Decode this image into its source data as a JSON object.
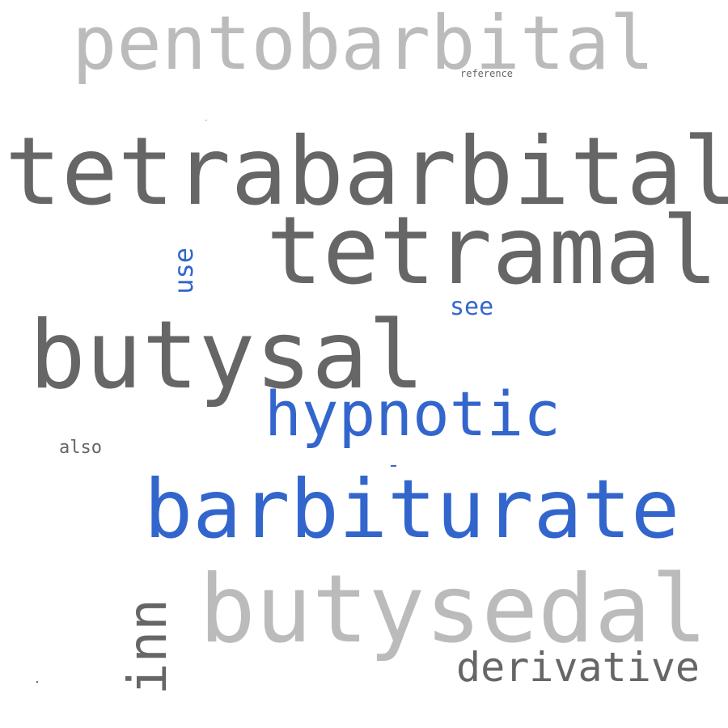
{
  "palette": {
    "light_gray": "#bbbbbb",
    "dark_gray": "#666666",
    "blue": "#3366cc"
  },
  "words": {
    "pentobarbital": {
      "text": "pentobarbital",
      "color": "#bbbbbb",
      "orientation": "horizontal"
    },
    "reference": {
      "text": "reference",
      "color": "#666666",
      "orientation": "horizontal"
    },
    "tetrabarbital": {
      "text": "tetrabarbital",
      "color": "#666666",
      "orientation": "horizontal"
    },
    "tetramal": {
      "text": "tetramal",
      "color": "#666666",
      "orientation": "horizontal"
    },
    "use": {
      "text": "use",
      "color": "#3366cc",
      "orientation": "vertical"
    },
    "see": {
      "text": "see",
      "color": "#3366cc",
      "orientation": "horizontal"
    },
    "butysal": {
      "text": "butysal",
      "color": "#666666",
      "orientation": "horizontal"
    },
    "hypnotic": {
      "text": "hypnotic",
      "color": "#3366cc",
      "orientation": "horizontal"
    },
    "also": {
      "text": "also",
      "color": "#666666",
      "orientation": "horizontal"
    },
    "barbiturate": {
      "text": "barbiturate",
      "color": "#3366cc",
      "orientation": "horizontal"
    },
    "butysedal": {
      "text": "butysedal",
      "color": "#bbbbbb",
      "orientation": "horizontal"
    },
    "inn": {
      "text": "inn",
      "color": "#666666",
      "orientation": "vertical"
    },
    "derivative": {
      "text": "derivative",
      "color": "#666666",
      "orientation": "horizontal"
    }
  }
}
